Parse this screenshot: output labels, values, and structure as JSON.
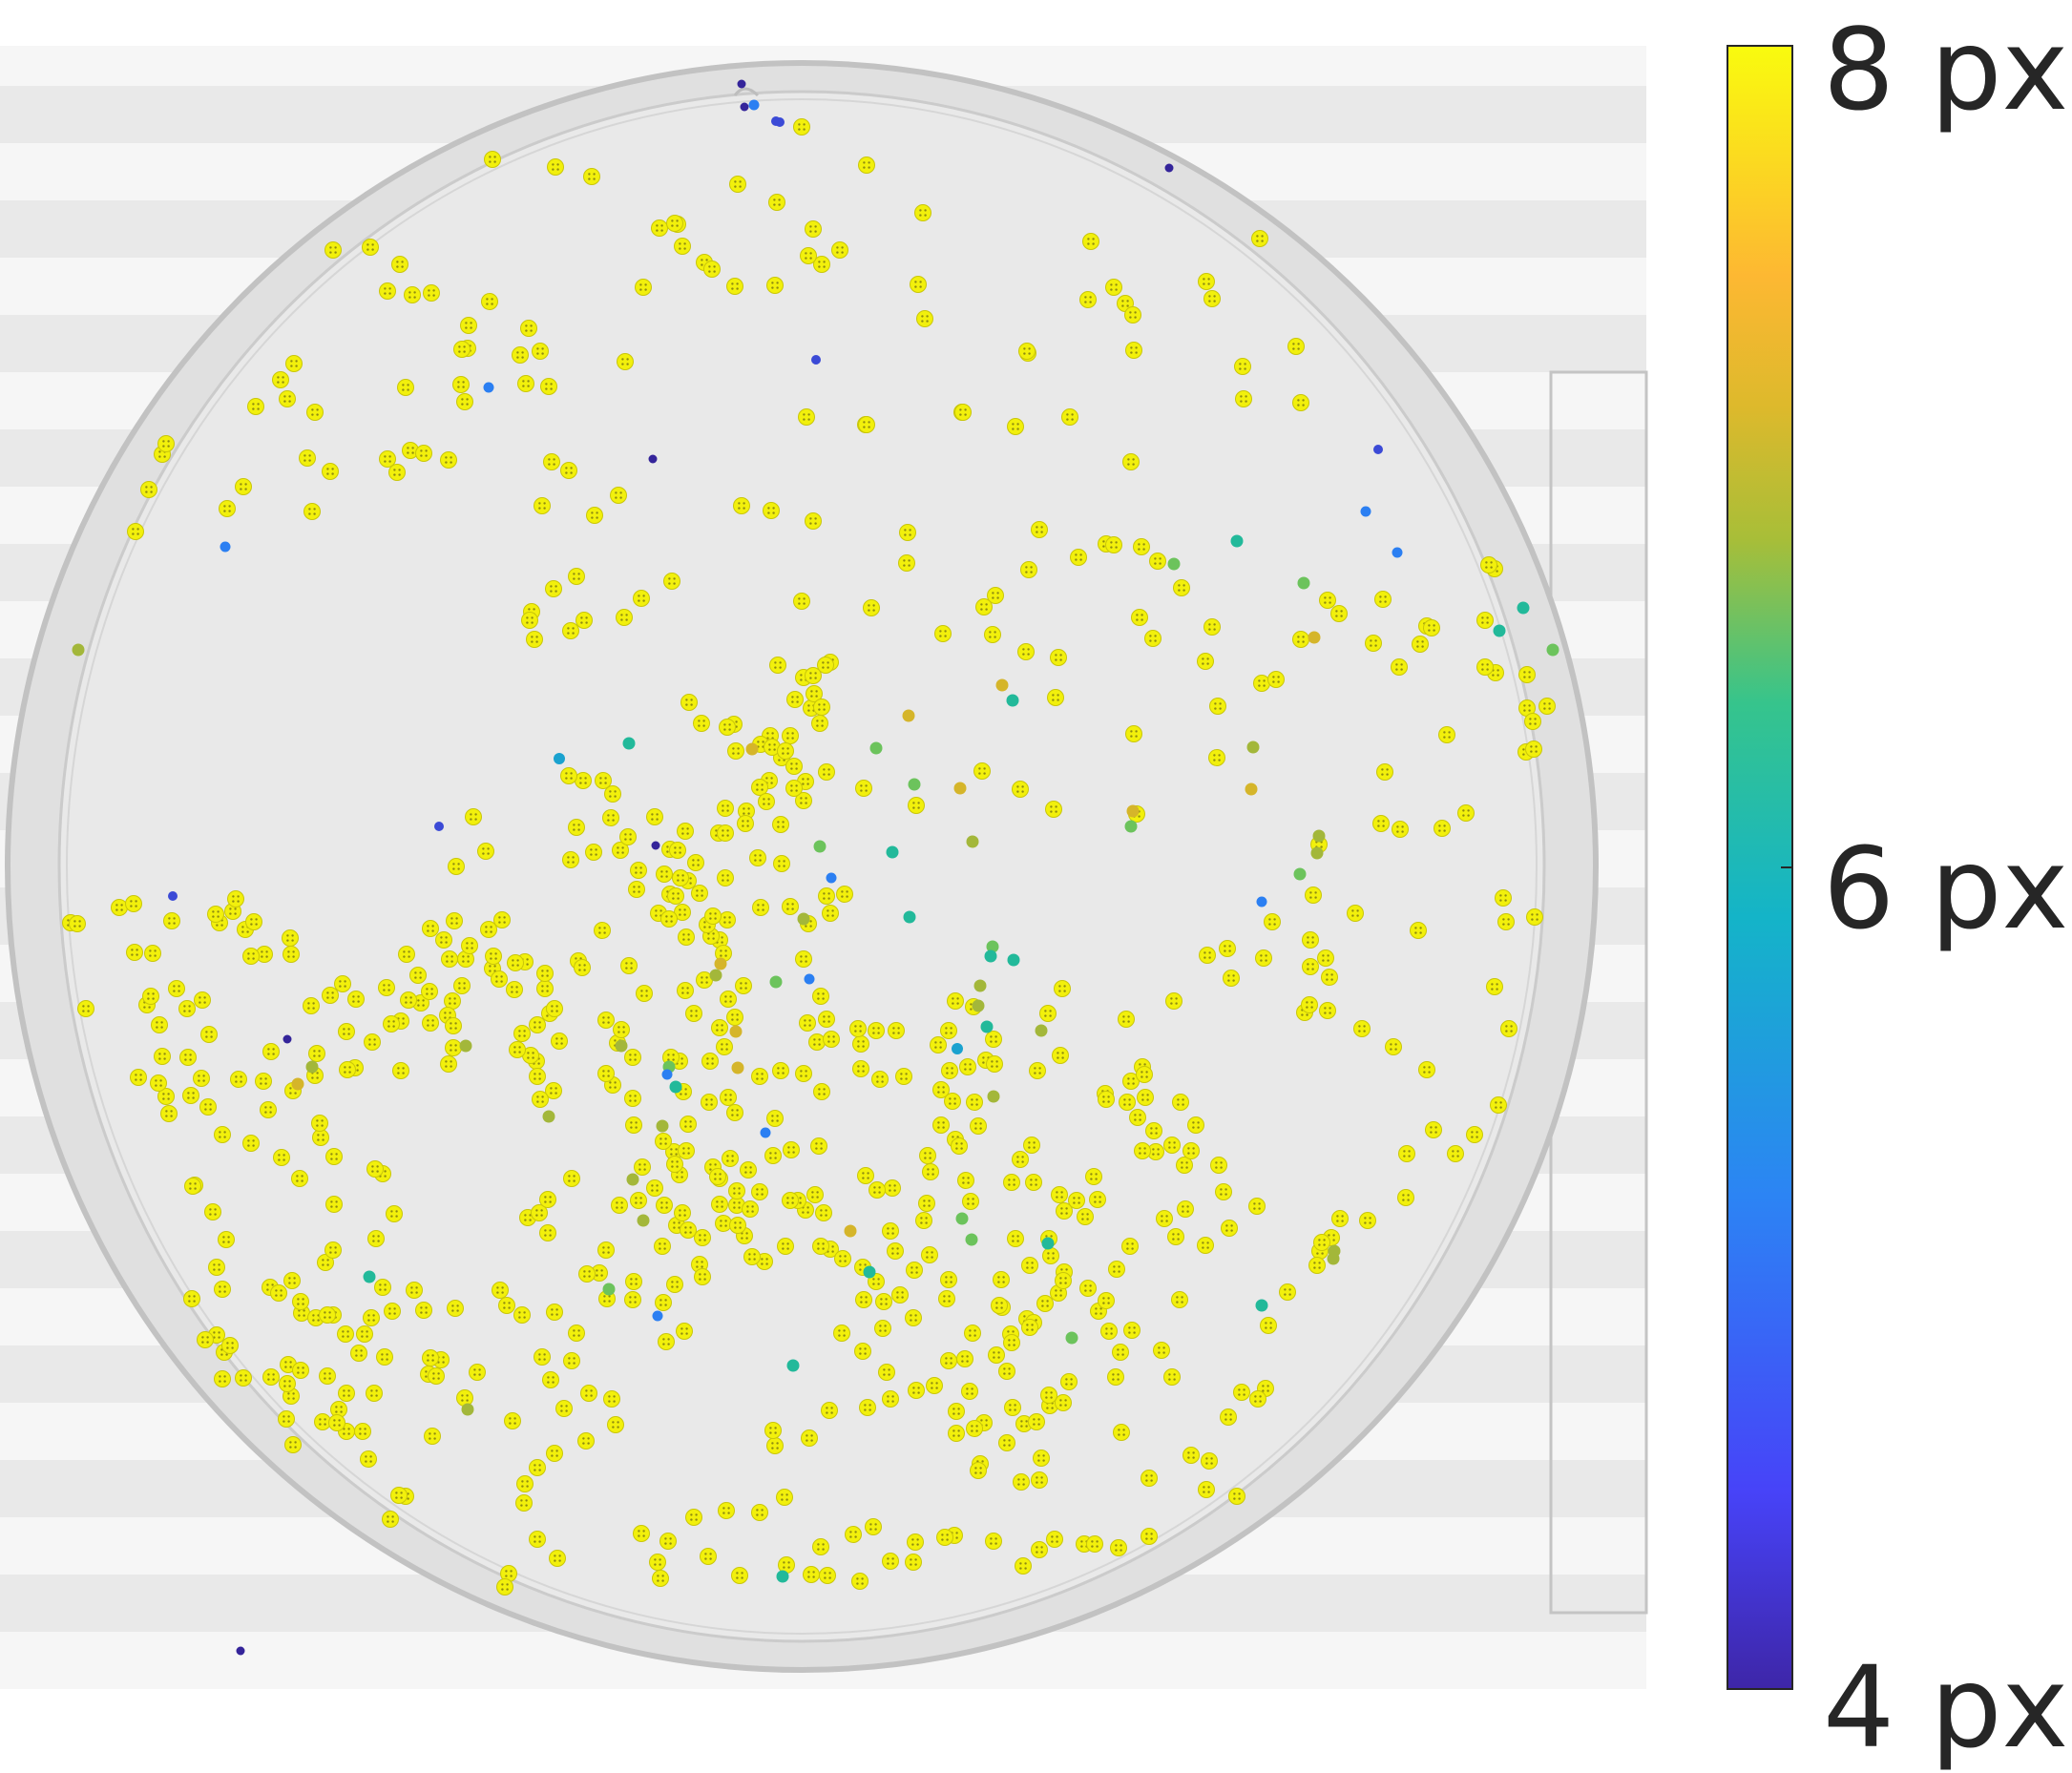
{
  "colorbar": {
    "labels": [
      "4 px",
      "6 px",
      "8 px"
    ],
    "colors": [
      "#3e26a8",
      "#4743f8",
      "#2c84f4",
      "#14b4c8",
      "#36c48c",
      "#a8be38",
      "#ddb92c",
      "#fdb832",
      "#f9fb0e"
    ]
  },
  "marker_colors": {
    "yellow": "#f2f00c",
    "gold": "#d5b52a",
    "olive": "#a3b73a",
    "green": "#6cc35c",
    "teal": "#22b99a",
    "cyan": "#1aa2cf",
    "blue": "#2b7ff2",
    "indigo": "#3b4ad6",
    "navy": "#34249a"
  }
}
